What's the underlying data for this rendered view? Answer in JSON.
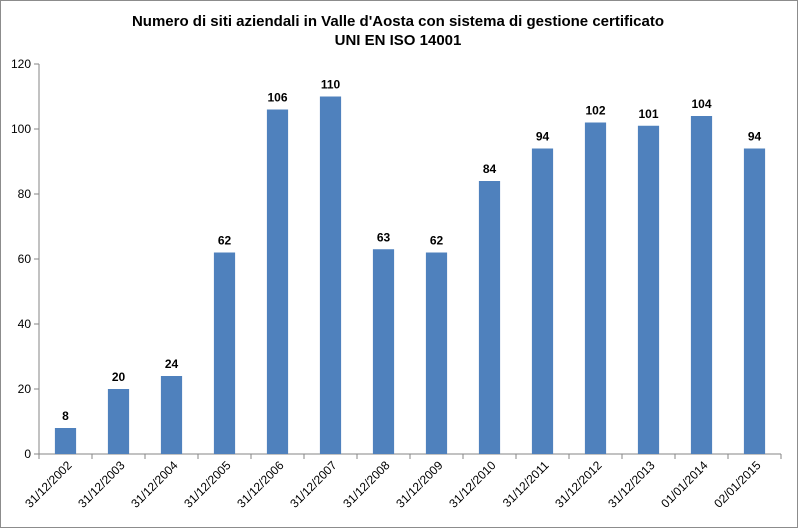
{
  "chart_data": {
    "type": "bar",
    "title": [
      "Numero di siti aziendali  in Valle d'Aosta con sistema di gestione certificato",
      "UNI EN ISO 14001"
    ],
    "xlabel": "",
    "ylabel": "",
    "categories": [
      "31/12/2002",
      "31/12/2003",
      "31/12/2004",
      "31/12/2005",
      "31/12/2006",
      "31/12/2007",
      "31/12/2008",
      "31/12/2009",
      "31/12/2010",
      "31/12/2011",
      "31/12/2012",
      "31/12/2013",
      "01/01/2014",
      "02/01/2015"
    ],
    "values": [
      8,
      20,
      24,
      62,
      106,
      110,
      63,
      62,
      84,
      94,
      102,
      101,
      104,
      94
    ],
    "ylim": [
      0,
      120
    ],
    "yticks": [
      "0",
      "20",
      "40",
      "60",
      "80",
      "100",
      "120"
    ],
    "grid": false,
    "legend": "none",
    "bar_color": "#4f81bd",
    "data_labels": true
  }
}
